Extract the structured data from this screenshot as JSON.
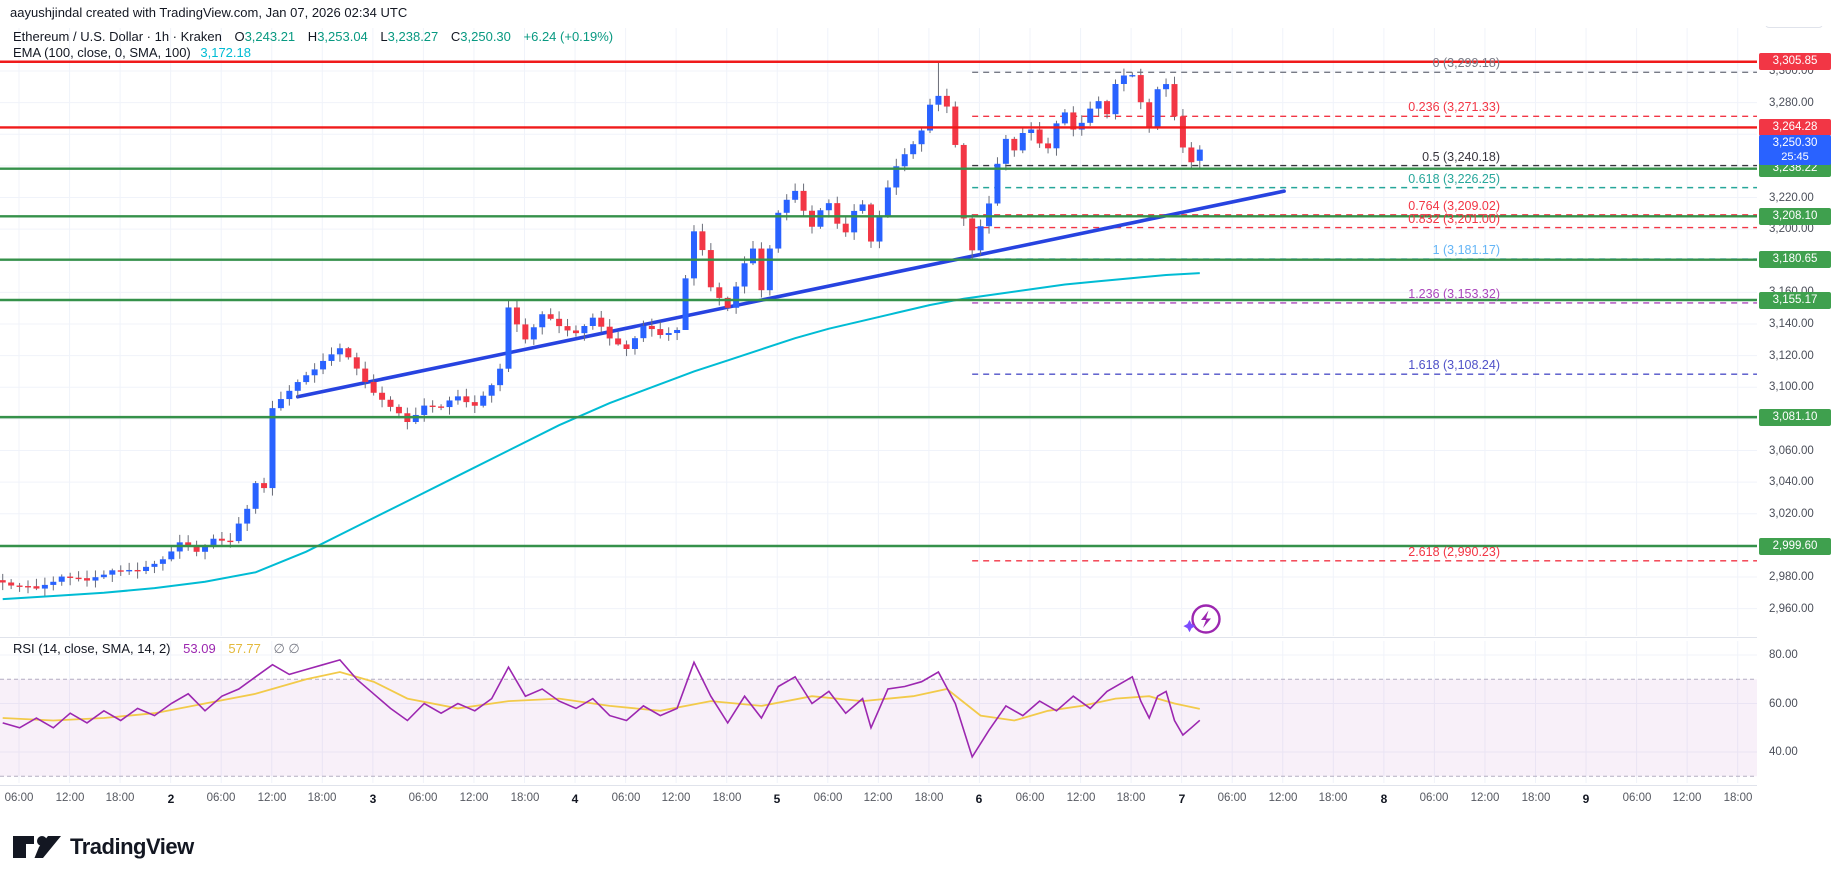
{
  "topbar": {
    "attribution": "aayushjindal created with TradingView.com, Jan 07, 2026 02:34 UTC"
  },
  "legend": {
    "symbol": "Ethereum / U.S. Dollar · 1h · Kraken",
    "o_label": "O",
    "o_value": "3,243.21",
    "h_label": "H",
    "h_value": "3,253.04",
    "l_label": "L",
    "l_value": "3,238.27",
    "c_label": "C",
    "c_value": "3,250.30",
    "change": "+6.24 (+0.19%)",
    "ema_label": "EMA (100, close, 0, SMA, 100)",
    "ema_value": "3,172.18"
  },
  "rsi_legend": {
    "label": "RSI (14, close, SMA, 14, 2)",
    "value": "53.09",
    "ma_value": "57.77",
    "ghost": "∅ ∅"
  },
  "price_axis": {
    "currency": "USD",
    "ticks": [
      3300,
      3280,
      3220,
      3200,
      3160,
      3140,
      3120,
      3100,
      3060,
      3040,
      3020,
      2980,
      2960
    ],
    "red_chips": [
      {
        "value": 3305.85,
        "text": "3,305.85"
      },
      {
        "value": 3264.28,
        "text": "3,264.28"
      }
    ],
    "blue_chip": {
      "value": 3250.3,
      "text": "3,250.30",
      "countdown": "25:45"
    },
    "green_chips": [
      {
        "value": 3238.22,
        "text": "3,238.22"
      },
      {
        "value": 3208.1,
        "text": "3,208.10"
      },
      {
        "value": 3180.65,
        "text": "3,180.65"
      },
      {
        "value": 3155.17,
        "text": "3,155.17"
      },
      {
        "value": 3081.1,
        "text": "3,081.10"
      },
      {
        "value": 2999.6,
        "text": "2,999.60"
      }
    ],
    "rsi_ticks": [
      80,
      60,
      40
    ]
  },
  "time_axis": {
    "labels": [
      "06:00",
      "12:00",
      "18:00",
      "2",
      "06:00",
      "12:00",
      "18:00",
      "3",
      "06:00",
      "12:00",
      "18:00",
      "4",
      "06:00",
      "12:00",
      "18:00",
      "5",
      "06:00",
      "12:00",
      "18:00",
      "6",
      "06:00",
      "12:00",
      "18:00",
      "7",
      "06:00",
      "12:00",
      "18:00",
      "8",
      "06:00",
      "12:00",
      "18:00",
      "9",
      "06:00",
      "12:00",
      "18:00"
    ],
    "day_indices": [
      3,
      7,
      11,
      15,
      19,
      23,
      27,
      31
    ]
  },
  "logo": {
    "text": "TradingView"
  },
  "colors": {
    "up": "#2962ff",
    "down": "#f23645",
    "wick": "#6a6d78",
    "grid": "#f0f3fa",
    "ema": "#00bcd4",
    "trendline": "#2743e0",
    "support_line": "#35914a",
    "resistance_line": "#f01b1b",
    "rsi_line": "#9c27b0",
    "rsi_ma": "#f2ca4a",
    "rsi_band": "#9c27b0"
  },
  "chart_data": {
    "type": "candlestick+line",
    "title": "Ethereum / U.S. Dollar, 1h, Kraken",
    "ylabel": "USD",
    "y_range": [
      2950,
      3310
    ],
    "last_candle": {
      "open": 3243.21,
      "high": 3253.04,
      "low": 3238.27,
      "close": 3250.3
    },
    "resistance_levels": [
      3305.85,
      3264.28
    ],
    "support_levels": [
      3238.22,
      3208.1,
      3180.65,
      3155.17,
      3081.1,
      2999.6
    ],
    "fib_levels": [
      {
        "label": "0",
        "value": 3299.18,
        "text": "0 (3,299.18)",
        "color": "#787b86"
      },
      {
        "label": "0.236",
        "value": 3271.33,
        "text": "0.236 (3,271.33)",
        "color": "#f23645"
      },
      {
        "label": "0.5",
        "value": 3240.18,
        "text": "0.5 (3,240.18)",
        "color": "#37343c"
      },
      {
        "label": "0.618",
        "value": 3226.25,
        "text": "0.618 (3,226.25)",
        "color": "#26a69a"
      },
      {
        "label": "0.764",
        "value": 3209.02,
        "text": "0.764 (3,209.02)",
        "color": "#f23645"
      },
      {
        "label": "0.832",
        "value": 3201.0,
        "text": "0.832 (3,201.00)",
        "color": "#f23645"
      },
      {
        "label": "1",
        "value": 3181.17,
        "text": "1 (3,181.17)",
        "color": "#64b5f6"
      },
      {
        "label": "1.236",
        "value": 3153.32,
        "text": "1.236 (3,153.32)",
        "color": "#ab47bc"
      },
      {
        "label": "1.618",
        "value": 3108.24,
        "text": "1.618 (3,108.24)",
        "color": "#4f51c8"
      },
      {
        "label": "2.618",
        "value": 2990.23,
        "text": "2.618 (2,990.23)",
        "color": "#f23645"
      }
    ],
    "trendline": {
      "x1_hour": 39,
      "price1": 3094,
      "x2_hour": 156,
      "price2": 3224
    },
    "price_anchors": [
      [
        4,
        2978
      ],
      [
        8,
        2971
      ],
      [
        11,
        2982
      ],
      [
        14,
        2976
      ],
      [
        17,
        2986
      ],
      [
        20,
        2982
      ],
      [
        23,
        2993
      ],
      [
        25,
        3001
      ],
      [
        27,
        2995
      ],
      [
        29,
        3006
      ],
      [
        31,
        3002
      ],
      [
        33,
        3022
      ],
      [
        34,
        3040
      ],
      [
        35,
        3038
      ],
      [
        36,
        3088
      ],
      [
        38,
        3096
      ],
      [
        40,
        3108
      ],
      [
        42,
        3118
      ],
      [
        44,
        3123
      ],
      [
        46,
        3112
      ],
      [
        48,
        3098
      ],
      [
        50,
        3086
      ],
      [
        52,
        3078
      ],
      [
        54,
        3090
      ],
      [
        56,
        3086
      ],
      [
        58,
        3094
      ],
      [
        60,
        3090
      ],
      [
        62,
        3100
      ],
      [
        63,
        3110
      ],
      [
        64,
        3150
      ],
      [
        66,
        3132
      ],
      [
        68,
        3145
      ],
      [
        70,
        3138
      ],
      [
        72,
        3136
      ],
      [
        74,
        3143
      ],
      [
        76,
        3130
      ],
      [
        78,
        3126
      ],
      [
        80,
        3138
      ],
      [
        82,
        3132
      ],
      [
        84,
        3138
      ],
      [
        85,
        3170
      ],
      [
        86,
        3198
      ],
      [
        87,
        3185
      ],
      [
        88,
        3162
      ],
      [
        90,
        3152
      ],
      [
        92,
        3178
      ],
      [
        93,
        3186
      ],
      [
        94,
        3160
      ],
      [
        95,
        3188
      ],
      [
        96,
        3212
      ],
      [
        97,
        3220
      ],
      [
        98,
        3224
      ],
      [
        99,
        3210
      ],
      [
        100,
        3200
      ],
      [
        101,
        3212
      ],
      [
        102,
        3218
      ],
      [
        103,
        3205
      ],
      [
        104,
        3198
      ],
      [
        105,
        3210
      ],
      [
        106,
        3214
      ],
      [
        107,
        3192
      ],
      [
        108,
        3210
      ],
      [
        109,
        3228
      ],
      [
        110,
        3240
      ],
      [
        111,
        3246
      ],
      [
        112,
        3252
      ],
      [
        113,
        3262
      ],
      [
        114,
        3280
      ],
      [
        115,
        3286
      ],
      [
        116,
        3278
      ],
      [
        117,
        3252
      ],
      [
        118,
        3205
      ],
      [
        119,
        3186
      ],
      [
        120,
        3203
      ],
      [
        121,
        3218
      ],
      [
        122,
        3242
      ],
      [
        123,
        3256
      ],
      [
        124,
        3248
      ],
      [
        125,
        3260
      ],
      [
        126,
        3264
      ],
      [
        127,
        3256
      ],
      [
        128,
        3252
      ],
      [
        129,
        3266
      ],
      [
        130,
        3272
      ],
      [
        131,
        3262
      ],
      [
        132,
        3268
      ],
      [
        133,
        3278
      ],
      [
        134,
        3282
      ],
      [
        135,
        3272
      ],
      [
        136,
        3290
      ],
      [
        137,
        3296
      ],
      [
        138,
        3298
      ],
      [
        139,
        3282
      ],
      [
        140,
        3266
      ],
      [
        141,
        3288
      ],
      [
        142,
        3290
      ],
      [
        143,
        3270
      ],
      [
        144,
        3252
      ],
      [
        145,
        3244
      ],
      [
        146,
        3250.3
      ]
    ],
    "wick_overrides": {
      "115": {
        "high": 3305.85
      },
      "138": {
        "high": 3299.18
      },
      "119": {
        "low": 3181.17
      },
      "85": {
        "low": 3148
      }
    },
    "ema_anchors": [
      [
        4,
        2966
      ],
      [
        10,
        2968
      ],
      [
        16,
        2970
      ],
      [
        22,
        2973
      ],
      [
        28,
        2977
      ],
      [
        34,
        2983
      ],
      [
        40,
        2996
      ],
      [
        46,
        3012
      ],
      [
        52,
        3028
      ],
      [
        58,
        3044
      ],
      [
        64,
        3060
      ],
      [
        70,
        3076
      ],
      [
        76,
        3090
      ],
      [
        82,
        3102
      ],
      [
        86,
        3110
      ],
      [
        90,
        3117
      ],
      [
        94,
        3124
      ],
      [
        98,
        3131
      ],
      [
        102,
        3137
      ],
      [
        106,
        3142
      ],
      [
        110,
        3147
      ],
      [
        114,
        3152
      ],
      [
        118,
        3156
      ],
      [
        122,
        3159
      ],
      [
        126,
        3162
      ],
      [
        130,
        3165
      ],
      [
        134,
        3167
      ],
      [
        138,
        3169
      ],
      [
        142,
        3171
      ],
      [
        146,
        3172.2
      ]
    ],
    "rsi": {
      "value": 53.09,
      "ma": 57.77,
      "upper_band": 70,
      "lower_band": 30,
      "anchors": [
        [
          4,
          52
        ],
        [
          6,
          50
        ],
        [
          8,
          54
        ],
        [
          10,
          50
        ],
        [
          12,
          56
        ],
        [
          14,
          52
        ],
        [
          16,
          57
        ],
        [
          18,
          53
        ],
        [
          20,
          58
        ],
        [
          22,
          55
        ],
        [
          24,
          60
        ],
        [
          26,
          64
        ],
        [
          28,
          57
        ],
        [
          30,
          63
        ],
        [
          32,
          66
        ],
        [
          34,
          71
        ],
        [
          36,
          76
        ],
        [
          38,
          72
        ],
        [
          40,
          74
        ],
        [
          42,
          76
        ],
        [
          44,
          78
        ],
        [
          46,
          70
        ],
        [
          48,
          64
        ],
        [
          50,
          58
        ],
        [
          52,
          53
        ],
        [
          54,
          60
        ],
        [
          56,
          56
        ],
        [
          58,
          60
        ],
        [
          60,
          57
        ],
        [
          62,
          62
        ],
        [
          64,
          75
        ],
        [
          66,
          63
        ],
        [
          68,
          66
        ],
        [
          70,
          61
        ],
        [
          72,
          58
        ],
        [
          74,
          62
        ],
        [
          76,
          55
        ],
        [
          78,
          53
        ],
        [
          80,
          59
        ],
        [
          82,
          55
        ],
        [
          84,
          58
        ],
        [
          86,
          77
        ],
        [
          88,
          63
        ],
        [
          90,
          52
        ],
        [
          92,
          63
        ],
        [
          94,
          54
        ],
        [
          96,
          67
        ],
        [
          98,
          71
        ],
        [
          100,
          60
        ],
        [
          102,
          65
        ],
        [
          104,
          56
        ],
        [
          106,
          62
        ],
        [
          107,
          50
        ],
        [
          109,
          66
        ],
        [
          111,
          67
        ],
        [
          113,
          69
        ],
        [
          115,
          73
        ],
        [
          117,
          60
        ],
        [
          119,
          38
        ],
        [
          121,
          49
        ],
        [
          123,
          59
        ],
        [
          125,
          55
        ],
        [
          127,
          61
        ],
        [
          129,
          57
        ],
        [
          131,
          63
        ],
        [
          133,
          58
        ],
        [
          135,
          65
        ],
        [
          137,
          69
        ],
        [
          138,
          71
        ],
        [
          139,
          61
        ],
        [
          140,
          54
        ],
        [
          141,
          63
        ],
        [
          142,
          65
        ],
        [
          143,
          53
        ],
        [
          144,
          47
        ],
        [
          145,
          50
        ],
        [
          146,
          53.09
        ]
      ],
      "ma_anchors": [
        [
          4,
          54
        ],
        [
          10,
          53
        ],
        [
          16,
          54
        ],
        [
          22,
          56
        ],
        [
          28,
          60
        ],
        [
          34,
          64
        ],
        [
          40,
          70
        ],
        [
          44,
          73
        ],
        [
          48,
          69
        ],
        [
          52,
          62
        ],
        [
          58,
          58
        ],
        [
          64,
          61
        ],
        [
          70,
          62
        ],
        [
          76,
          59
        ],
        [
          82,
          57
        ],
        [
          88,
          61
        ],
        [
          94,
          59
        ],
        [
          100,
          63
        ],
        [
          106,
          61
        ],
        [
          112,
          63
        ],
        [
          116,
          66
        ],
        [
          120,
          55
        ],
        [
          124,
          53
        ],
        [
          128,
          57
        ],
        [
          132,
          59
        ],
        [
          136,
          62
        ],
        [
          140,
          63
        ],
        [
          143,
          60
        ],
        [
          146,
          57.77
        ]
      ]
    }
  }
}
